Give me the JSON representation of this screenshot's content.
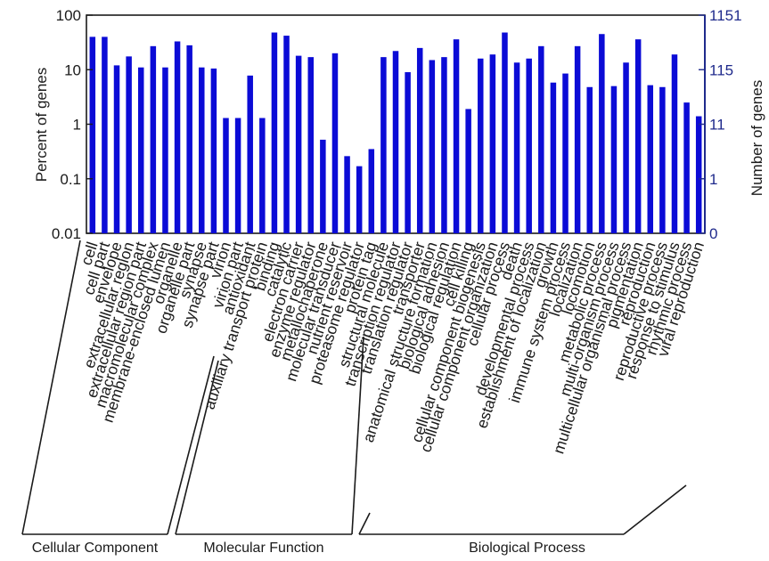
{
  "chart_data": {
    "type": "bar",
    "ylabel": "Percent of genes",
    "y2label": "Number of genes",
    "yscale": "log",
    "ylim": [
      0.01,
      100
    ],
    "yticks": [
      "100",
      "10",
      "1",
      "0.1",
      "0.01"
    ],
    "y2ticks": [
      "1151",
      "115",
      "11",
      "1",
      "0"
    ],
    "bar_color": "#0b0bd6",
    "right_axis_color": "#1f2a8c",
    "categories": [
      "cell",
      "cell part",
      "envelope",
      "extracellular region",
      "extracellular region part",
      "macromolecular complex",
      "membrane-enclosed lumen",
      "organelle",
      "organelle part",
      "synapse",
      "synapse part",
      "virion",
      "virion part",
      "antioxidant",
      "auxiliary transport protein",
      "binding",
      "catalytic",
      "electron carrier",
      "enzyme regulator",
      "metallochaperone",
      "molecular transducer",
      "nutrient reservoir",
      "proteasome regulator",
      "protein tag",
      "structural molecule",
      "transcription regulator",
      "translation regulator",
      "transporter",
      "anatomical structure formation",
      "biological adhesion",
      "biological regulation",
      "cell killing",
      "cellular component biogenesis",
      "cellular component organization",
      "cellular process",
      "death",
      "developmental process",
      "establishment of localization",
      "growth",
      "immune system process",
      "localization",
      "locomotion",
      "metabolic process",
      "multi-organism process",
      "multicellular organismal process",
      "pigmentation",
      "reproduction",
      "reproductive process",
      "response to stimulus",
      "rhythmic process",
      "viral reproduction"
    ],
    "values": [
      40,
      40,
      12,
      17.5,
      11,
      27,
      11,
      33,
      28,
      11,
      10.5,
      1.3,
      1.3,
      7.8,
      1.3,
      48,
      42,
      18,
      17,
      0.52,
      20,
      0.26,
      0.17,
      0.35,
      17,
      22,
      9,
      25,
      15,
      17,
      36,
      1.9,
      16,
      19,
      48,
      13.5,
      16,
      27,
      5.8,
      8.5,
      27,
      4.8,
      45,
      5,
      13.5,
      36,
      5.2,
      4.8,
      19,
      2.5,
      1.4
    ],
    "groups": [
      {
        "label": "Cellular Component",
        "start": 0,
        "end": 12
      },
      {
        "label": "Molecular Function",
        "start": 13,
        "end": 27
      },
      {
        "label": "Biological Process",
        "start": 28,
        "end": 50
      }
    ]
  }
}
